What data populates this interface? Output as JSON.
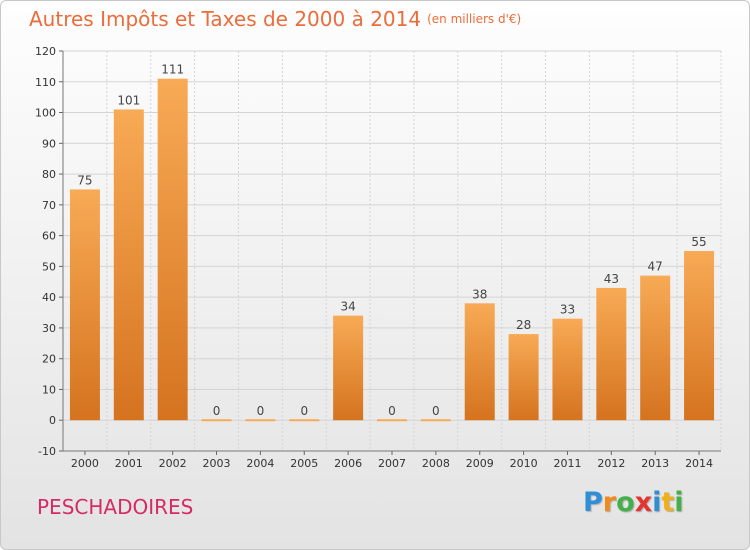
{
  "header": {
    "title": "Autres Impôts et Taxes de 2000 à 2014",
    "unit": "(en milliers d'€)"
  },
  "commune": "PESCHADOIRES",
  "logo": {
    "letters": [
      {
        "ch": "P",
        "color": "#2f8fd6"
      },
      {
        "ch": "r",
        "color": "#f08a1c"
      },
      {
        "ch": "o",
        "color": "#43b04a"
      },
      {
        "ch": "x",
        "color": "#e3342f"
      },
      {
        "ch": "i",
        "color": "#2f8fd6"
      },
      {
        "ch": "t",
        "color": "#f0b01c"
      },
      {
        "ch": "i",
        "color": "#43b04a"
      }
    ]
  },
  "colors": {
    "bar_light": "#f8aa55",
    "bar_dark": "#d5731f",
    "grid": "#d4d4d4",
    "axis_text": "#333333",
    "label_text": "#444444"
  },
  "chart_data": {
    "type": "bar",
    "categories": [
      "2000",
      "2001",
      "2002",
      "2003",
      "2004",
      "2005",
      "2006",
      "2007",
      "2008",
      "2009",
      "2010",
      "2011",
      "2012",
      "2013",
      "2014"
    ],
    "values": [
      75,
      101,
      111,
      0,
      0,
      0,
      34,
      0,
      0,
      38,
      28,
      33,
      43,
      47,
      55
    ],
    "data_labels": [
      "75",
      "101",
      "111",
      "0",
      "0",
      "0",
      "34",
      "0",
      "0",
      "38",
      "28",
      "33",
      "43",
      "47",
      "55"
    ],
    "ylim": [
      -10,
      120
    ],
    "yticks": [
      -10,
      0,
      10,
      20,
      30,
      40,
      50,
      60,
      70,
      80,
      90,
      100,
      110,
      120
    ],
    "grid": true
  }
}
